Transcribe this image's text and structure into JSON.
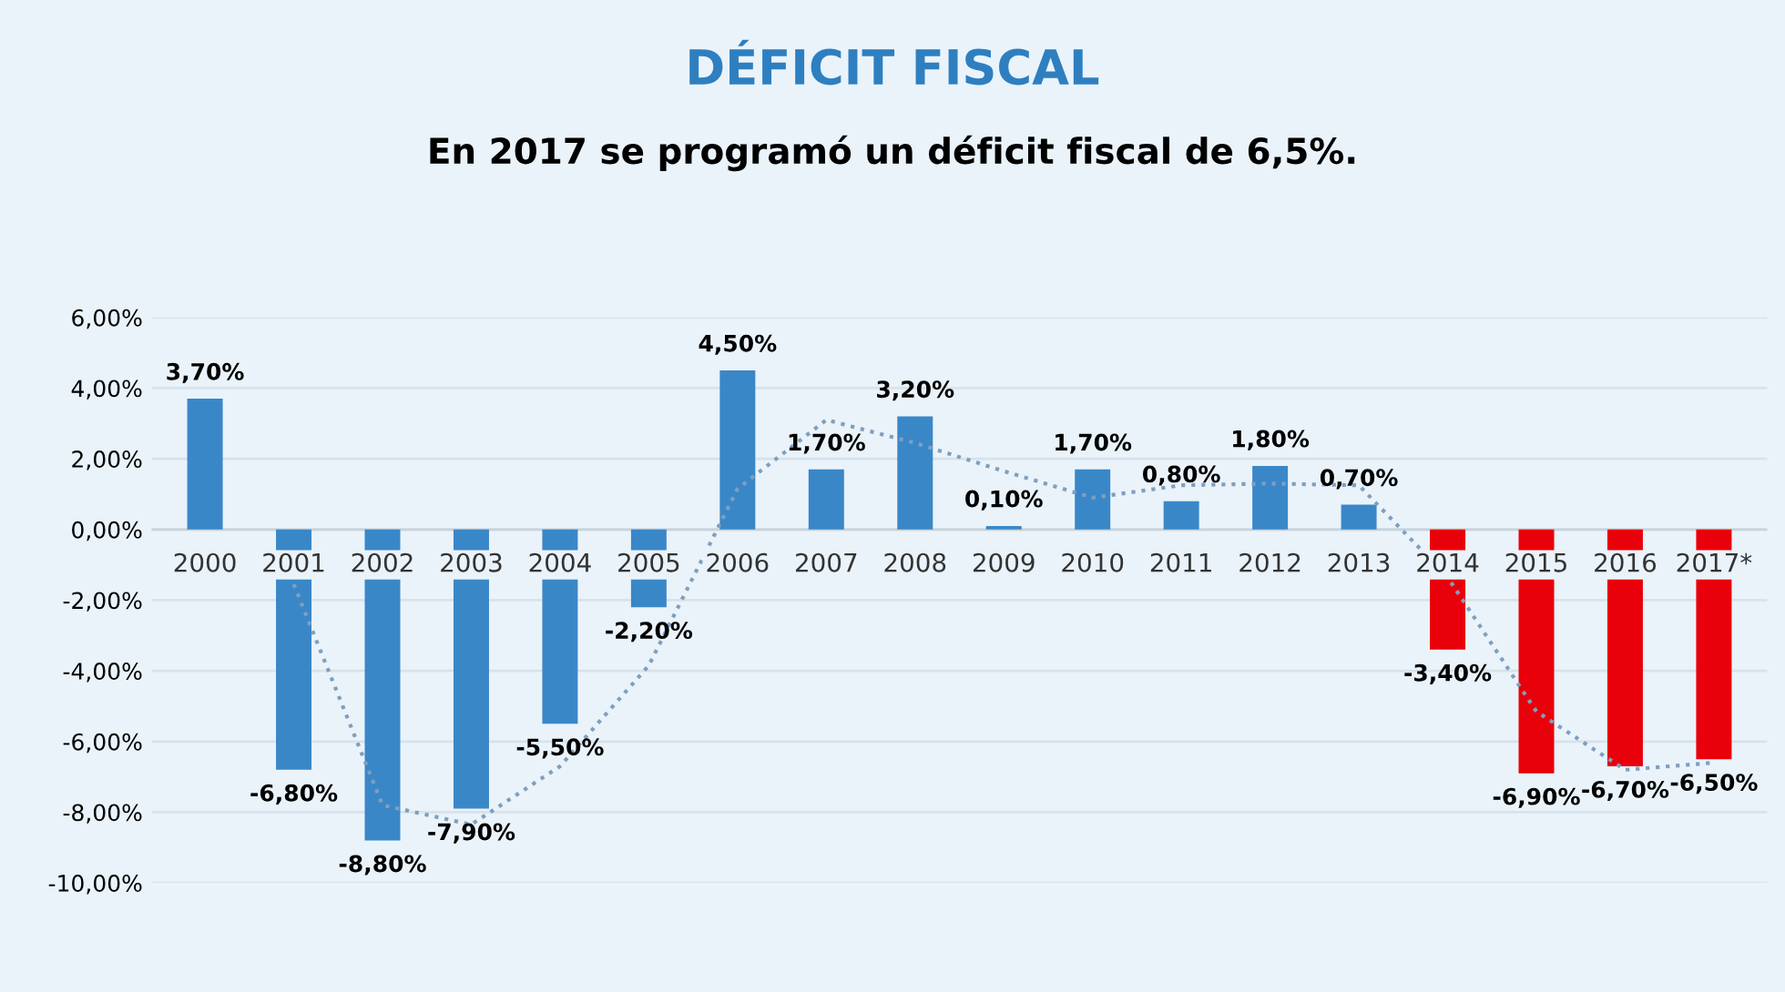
{
  "chart_data": {
    "type": "bar",
    "title": "DÉFICIT FISCAL",
    "subtitle": "En 2017 se programó un déficit fiscal de 6,5%.",
    "categories": [
      "2000",
      "2001",
      "2002",
      "2003",
      "2004",
      "2005",
      "2006",
      "2007",
      "2008",
      "2009",
      "2010",
      "2011",
      "2012",
      "2013",
      "2014",
      "2015",
      "2016",
      "2017*"
    ],
    "series": [
      {
        "colors": [
          "#3a87c8",
          "#3a87c8",
          "#3a87c8",
          "#3a87c8",
          "#3a87c8",
          "#3a87c8",
          "#3a87c8",
          "#3a87c8",
          "#3a87c8",
          "#3a87c8",
          "#3a87c8",
          "#3a87c8",
          "#3a87c8",
          "#3a87c8",
          "#e8000b",
          "#e8000b",
          "#e8000b",
          "#e8000b"
        ],
        "values": [
          3.7,
          -6.8,
          -8.8,
          -7.9,
          -5.5,
          -2.2,
          4.5,
          1.7,
          3.2,
          0.1,
          1.7,
          0.8,
          1.8,
          0.7,
          -3.4,
          -6.9,
          -6.7,
          -6.5
        ],
        "value_labels": [
          "3,70%",
          "-6,80%",
          "-8,80%",
          "-7,90%",
          "-5,50%",
          "-2,20%",
          "4,50%",
          "1,70%",
          "3,20%",
          "0,10%",
          "1,70%",
          "0,80%",
          "1,80%",
          "0,70%",
          "-3,40%",
          "-6,90%",
          "-6,70%",
          "-6,50%"
        ]
      },
      {
        "type": "line",
        "color": "#7f9fbf",
        "line_style": "dotted",
        "values": [
          null,
          -1.55,
          -7.8,
          -8.35,
          -6.7,
          -3.85,
          1.15,
          3.1,
          2.45,
          1.65,
          0.9,
          1.25,
          1.3,
          1.25,
          -1.35,
          -5.15,
          -6.8,
          -6.6
        ]
      }
    ],
    "ylim": [
      -10,
      6
    ],
    "yticks": [
      {
        "value": 6,
        "label": "6,00%"
      },
      {
        "value": 4,
        "label": "4,00%"
      },
      {
        "value": 2,
        "label": "2,00%"
      },
      {
        "value": 0,
        "label": "0,00%"
      },
      {
        "value": -2,
        "label": "-2,00%"
      },
      {
        "value": -4,
        "label": "-4,00%"
      },
      {
        "value": -6,
        "label": "-6,00%"
      },
      {
        "value": -8,
        "label": "-8,00%"
      },
      {
        "value": -10,
        "label": "-10,00%"
      }
    ],
    "grid": "y",
    "legend": false
  }
}
